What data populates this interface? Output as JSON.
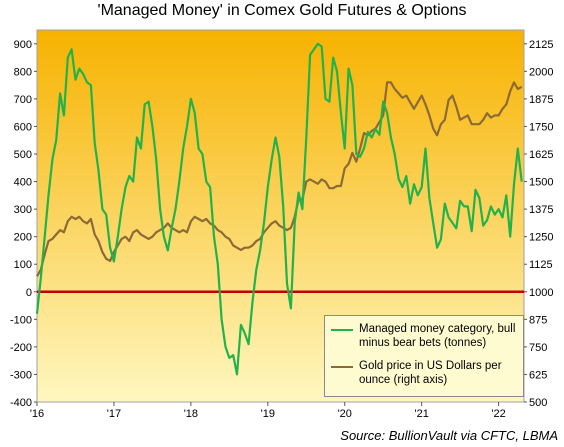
{
  "chart_data": {
    "type": "line",
    "title": "'Managed Money' in Comex Gold Futures & Options",
    "source": "Source: BullionVault via CFTC, LBMA",
    "x_ticks": [
      "'16",
      "'17",
      "'18",
      "'19",
      "'20",
      "'21",
      "'22"
    ],
    "x_range": [
      2016.0,
      2022.33
    ],
    "y_left": {
      "range": [
        -400,
        950
      ],
      "ticks": [
        "900",
        "800",
        "700",
        "600",
        "500",
        "400",
        "300",
        "200",
        "100",
        "0",
        "-100",
        "-200",
        "-300",
        "-400"
      ]
    },
    "y_right": {
      "range": [
        500,
        2187.5
      ],
      "ticks": [
        "2125",
        "2000",
        "1875",
        "1750",
        "1625",
        "1500",
        "1375",
        "1250",
        "1125",
        "1000",
        "875",
        "750",
        "625",
        "500"
      ]
    },
    "zero_line_color": "#c00000",
    "colors": {
      "net_position": "#22b24c",
      "gold_price": "#8c6a35",
      "bg_top": "#f7b200",
      "bg_bottom": "#fff7c0"
    },
    "series": [
      {
        "name": "Managed money category, bull minus bear bets (tonnes)",
        "axis": "left",
        "x": [
          2016.0,
          2016.05,
          2016.1,
          2016.15,
          2016.2,
          2016.25,
          2016.3,
          2016.35,
          2016.4,
          2016.45,
          2016.5,
          2016.55,
          2016.6,
          2016.65,
          2016.7,
          2016.75,
          2016.8,
          2016.85,
          2016.9,
          2016.95,
          2017.0,
          2017.05,
          2017.1,
          2017.15,
          2017.2,
          2017.25,
          2017.3,
          2017.35,
          2017.4,
          2017.45,
          2017.5,
          2017.55,
          2017.6,
          2017.65,
          2017.7,
          2017.75,
          2017.8,
          2017.85,
          2017.9,
          2017.95,
          2018.0,
          2018.05,
          2018.1,
          2018.15,
          2018.2,
          2018.25,
          2018.3,
          2018.35,
          2018.4,
          2018.45,
          2018.5,
          2018.55,
          2018.6,
          2018.65,
          2018.7,
          2018.75,
          2018.8,
          2018.85,
          2018.9,
          2018.95,
          2019.0,
          2019.05,
          2019.1,
          2019.15,
          2019.2,
          2019.25,
          2019.3,
          2019.35,
          2019.4,
          2019.45,
          2019.5,
          2019.55,
          2019.6,
          2019.65,
          2019.7,
          2019.75,
          2019.8,
          2019.85,
          2019.9,
          2019.95,
          2020.0,
          2020.05,
          2020.1,
          2020.15,
          2020.2,
          2020.25,
          2020.3,
          2020.35,
          2020.4,
          2020.45,
          2020.5,
          2020.55,
          2020.6,
          2020.65,
          2020.7,
          2020.75,
          2020.8,
          2020.85,
          2020.9,
          2020.95,
          2021.0,
          2021.05,
          2021.1,
          2021.15,
          2021.2,
          2021.25,
          2021.3,
          2021.35,
          2021.4,
          2021.45,
          2021.5,
          2021.55,
          2021.6,
          2021.65,
          2021.7,
          2021.75,
          2021.8,
          2021.85,
          2021.9,
          2021.95,
          2022.0,
          2022.05,
          2022.1,
          2022.15,
          2022.2,
          2022.25,
          2022.3
        ],
        "values": [
          -80,
          50,
          200,
          350,
          480,
          550,
          720,
          640,
          850,
          880,
          770,
          810,
          790,
          760,
          750,
          540,
          440,
          300,
          280,
          160,
          110,
          200,
          300,
          380,
          420,
          400,
          560,
          520,
          680,
          690,
          600,
          480,
          300,
          200,
          150,
          230,
          300,
          400,
          520,
          600,
          700,
          650,
          520,
          500,
          400,
          380,
          200,
          100,
          -100,
          -200,
          -240,
          -230,
          -300,
          -120,
          -150,
          -190,
          -40,
          80,
          150,
          250,
          380,
          480,
          560,
          490,
          310,
          30,
          -60,
          250,
          360,
          300,
          560,
          860,
          880,
          900,
          890,
          700,
          690,
          850,
          800,
          650,
          520,
          810,
          750,
          500,
          490,
          520,
          580,
          560,
          590,
          570,
          690,
          650,
          560,
          500,
          410,
          380,
          420,
          320,
          390,
          350,
          380,
          520,
          340,
          250,
          160,
          190,
          320,
          270,
          250,
          230,
          330,
          310,
          310,
          220,
          370,
          340,
          240,
          260,
          310,
          280,
          300,
          270,
          350,
          200,
          390,
          520,
          400
        ],
        "color": "#22b24c"
      },
      {
        "name": "Gold price in US Dollars per ounce (right axis)",
        "axis": "right",
        "x": [
          2016.0,
          2016.05,
          2016.1,
          2016.15,
          2016.2,
          2016.25,
          2016.3,
          2016.35,
          2016.4,
          2016.45,
          2016.5,
          2016.55,
          2016.6,
          2016.65,
          2016.7,
          2016.75,
          2016.8,
          2016.85,
          2016.9,
          2016.95,
          2017.0,
          2017.05,
          2017.1,
          2017.15,
          2017.2,
          2017.25,
          2017.3,
          2017.35,
          2017.4,
          2017.45,
          2017.5,
          2017.55,
          2017.6,
          2017.65,
          2017.7,
          2017.75,
          2017.8,
          2017.85,
          2017.9,
          2017.95,
          2018.0,
          2018.05,
          2018.1,
          2018.15,
          2018.2,
          2018.25,
          2018.3,
          2018.35,
          2018.4,
          2018.45,
          2018.5,
          2018.55,
          2018.6,
          2018.65,
          2018.7,
          2018.75,
          2018.8,
          2018.85,
          2018.9,
          2018.95,
          2019.0,
          2019.05,
          2019.1,
          2019.15,
          2019.2,
          2019.25,
          2019.3,
          2019.35,
          2019.4,
          2019.45,
          2019.5,
          2019.55,
          2019.6,
          2019.65,
          2019.7,
          2019.75,
          2019.8,
          2019.85,
          2019.9,
          2019.95,
          2020.0,
          2020.05,
          2020.1,
          2020.15,
          2020.2,
          2020.25,
          2020.3,
          2020.35,
          2020.4,
          2020.45,
          2020.5,
          2020.55,
          2020.6,
          2020.65,
          2020.7,
          2020.75,
          2020.8,
          2020.85,
          2020.9,
          2020.95,
          2021.0,
          2021.05,
          2021.1,
          2021.15,
          2021.2,
          2021.25,
          2021.3,
          2021.35,
          2021.4,
          2021.45,
          2021.5,
          2021.55,
          2021.6,
          2021.65,
          2021.7,
          2021.75,
          2021.8,
          2021.85,
          2021.9,
          2021.95,
          2022.0,
          2022.05,
          2022.1,
          2022.15,
          2022.2,
          2022.25,
          2022.3
        ],
        "values": [
          1070,
          1100,
          1170,
          1230,
          1240,
          1260,
          1280,
          1270,
          1320,
          1340,
          1330,
          1340,
          1320,
          1310,
          1330,
          1260,
          1230,
          1180,
          1150,
          1140,
          1180,
          1210,
          1240,
          1250,
          1230,
          1270,
          1280,
          1260,
          1250,
          1240,
          1250,
          1270,
          1280,
          1290,
          1310,
          1290,
          1280,
          1270,
          1280,
          1270,
          1320,
          1340,
          1330,
          1320,
          1330,
          1310,
          1300,
          1280,
          1270,
          1250,
          1240,
          1210,
          1200,
          1190,
          1200,
          1200,
          1210,
          1230,
          1240,
          1270,
          1290,
          1310,
          1320,
          1300,
          1290,
          1280,
          1290,
          1340,
          1420,
          1420,
          1500,
          1510,
          1500,
          1490,
          1510,
          1500,
          1470,
          1470,
          1480,
          1480,
          1560,
          1580,
          1630,
          1590,
          1650,
          1720,
          1710,
          1730,
          1740,
          1770,
          1800,
          1950,
          1950,
          1920,
          1900,
          1880,
          1890,
          1860,
          1830,
          1860,
          1890,
          1850,
          1800,
          1740,
          1710,
          1760,
          1780,
          1870,
          1890,
          1840,
          1780,
          1790,
          1800,
          1760,
          1760,
          1760,
          1780,
          1810,
          1790,
          1800,
          1800,
          1830,
          1850,
          1910,
          1950,
          1920,
          1930
        ],
        "color": "#8c6a35"
      }
    ]
  }
}
